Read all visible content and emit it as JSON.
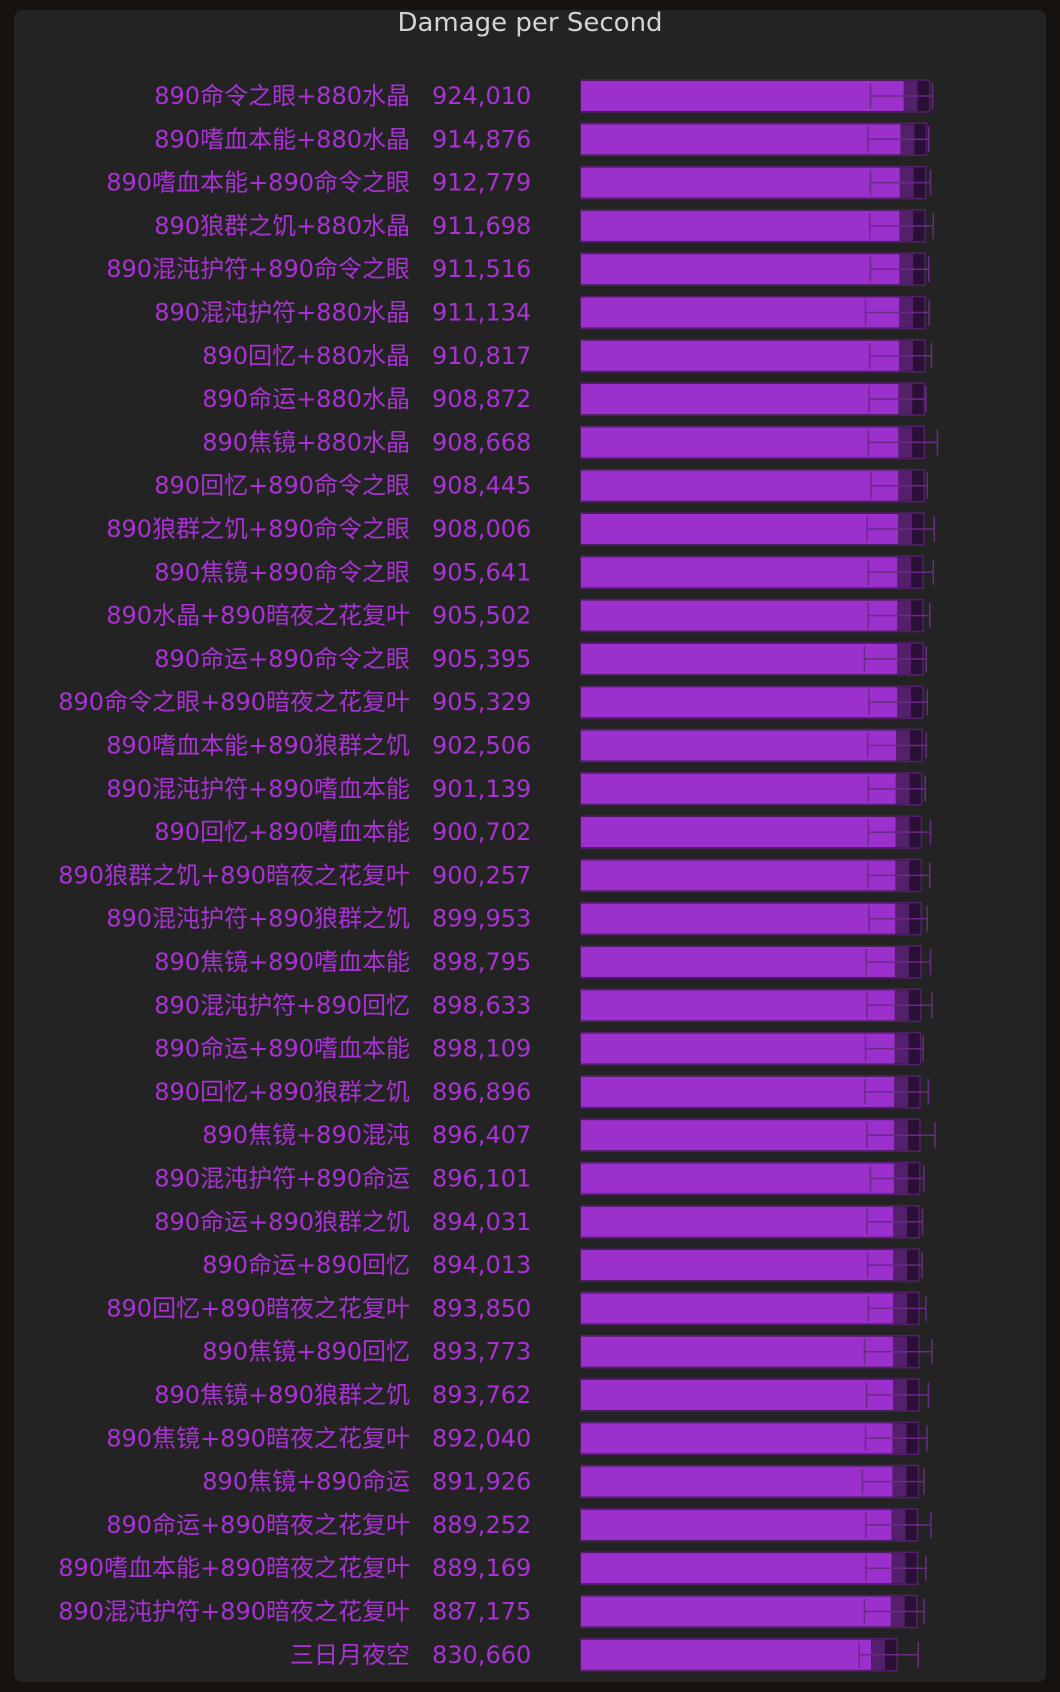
{
  "chart_data": {
    "type": "bar",
    "orientation": "horizontal",
    "title": "Damage per Second",
    "xlim": [
      0,
      960000
    ],
    "bar_color": "#9b30cc",
    "bar_dark_color": "#54206b",
    "bar_darker_color": "#2a0f36",
    "error_color": "#6a2a85",
    "categories": [
      "890命令之眼+880水晶",
      "890嗜血本能+880水晶",
      "890嗜血本能+890命令之眼",
      "890狼群之饥+880水晶",
      "890混沌护符+890命令之眼",
      "890混沌护符+880水晶",
      "890回忆+880水晶",
      "890命运+880水晶",
      "890焦镜+880水晶",
      "890回忆+890命令之眼",
      "890狼群之饥+890命令之眼",
      "890焦镜+890命令之眼",
      "890水晶+890暗夜之花复叶",
      "890命运+890命令之眼",
      "890命令之眼+890暗夜之花复叶",
      "890嗜血本能+890狼群之饥",
      "890混沌护符+890嗜血本能",
      "890回忆+890嗜血本能",
      "890狼群之饥+890暗夜之花复叶",
      "890混沌护符+890狼群之饥",
      "890焦镜+890嗜血本能",
      "890混沌护符+890回忆",
      "890命运+890嗜血本能",
      "890回忆+890狼群之饥",
      "890焦镜+890混沌",
      "890混沌护符+890命运",
      "890命运+890狼群之饥",
      "890命运+890回忆",
      "890回忆+890暗夜之花复叶",
      "890焦镜+890回忆",
      "890焦镜+890狼群之饥",
      "890焦镜+890暗夜之花复叶",
      "890焦镜+890命运",
      "890命运+890暗夜之花复叶",
      "890嗜血本能+890暗夜之花复叶",
      "890混沌护符+890暗夜之花复叶",
      "三日月夜空"
    ],
    "values": [
      924010,
      914876,
      912779,
      911698,
      911516,
      911134,
      910817,
      908872,
      908668,
      908445,
      908006,
      905641,
      905502,
      905395,
      905329,
      902506,
      901139,
      900702,
      900257,
      899953,
      898795,
      898633,
      898109,
      896896,
      896407,
      896101,
      894031,
      894013,
      893850,
      893773,
      893762,
      892040,
      891926,
      889252,
      889169,
      887175,
      830660
    ],
    "value_labels": [
      "924,010",
      "914,876",
      "912,779",
      "911,698",
      "911,516",
      "911,134",
      "910,817",
      "908,872",
      "908,668",
      "908,445",
      "908,006",
      "905,641",
      "905,502",
      "905,395",
      "905,329",
      "902,506",
      "901,139",
      "900,702",
      "900,257",
      "899,953",
      "898,795",
      "898,633",
      "898,109",
      "896,896",
      "896,407",
      "896,101",
      "894,031",
      "894,013",
      "893,850",
      "893,773",
      "893,762",
      "892,040",
      "891,926",
      "889,252",
      "889,169",
      "887,175",
      "830,660"
    ],
    "range_min": [
      829000,
      822000,
      829000,
      827000,
      829000,
      815000,
      827000,
      825000,
      823000,
      831000,
      820000,
      823000,
      823000,
      812000,
      825000,
      821000,
      823000,
      823000,
      822000,
      825000,
      817000,
      819000,
      815000,
      813000,
      819000,
      829000,
      819000,
      821000,
      823000,
      812000,
      818000,
      815000,
      806000,
      816000,
      816000,
      812000,
      797000
    ],
    "range_max": [
      1007000,
      996000,
      1001000,
      1009000,
      996000,
      997000,
      1004000,
      988000,
      1021000,
      992000,
      1012000,
      1009000,
      999000,
      989000,
      992000,
      989000,
      986000,
      1001000,
      999000,
      992000,
      1001000,
      1005000,
      980000,
      995000,
      1014000,
      982000,
      978000,
      977000,
      988000,
      1005000,
      995000,
      991000,
      982000,
      1002000,
      988000,
      983000,
      966000
    ],
    "grid": false,
    "legend": "none"
  }
}
